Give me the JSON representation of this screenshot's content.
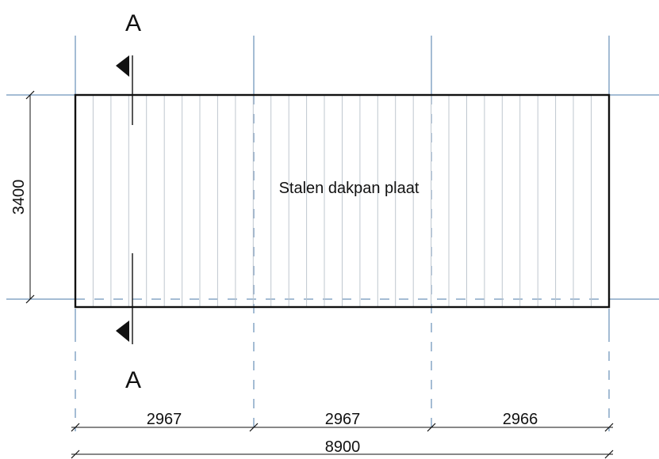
{
  "section_mark": "A",
  "center_label": "Stalen dakpan plaat",
  "dimensions": {
    "height": "3400",
    "bays": [
      "2967",
      "2967",
      "2966"
    ],
    "total": "8900"
  }
}
